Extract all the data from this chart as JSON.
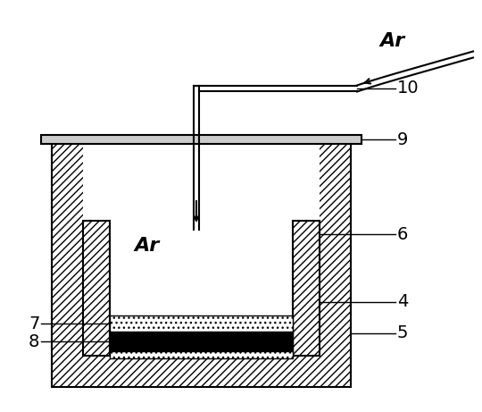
{
  "background_color": "#ffffff",
  "line_color": "#000000",
  "labels": {
    "Ar_top": "Ar",
    "Ar_inside": "Ar",
    "label_10": "10",
    "label_9": "9",
    "label_6": "6",
    "label_4": "4",
    "label_7": "7",
    "label_8": "8",
    "label_5": "5"
  },
  "figsize": [
    5.4,
    4.61
  ],
  "dpi": 100
}
